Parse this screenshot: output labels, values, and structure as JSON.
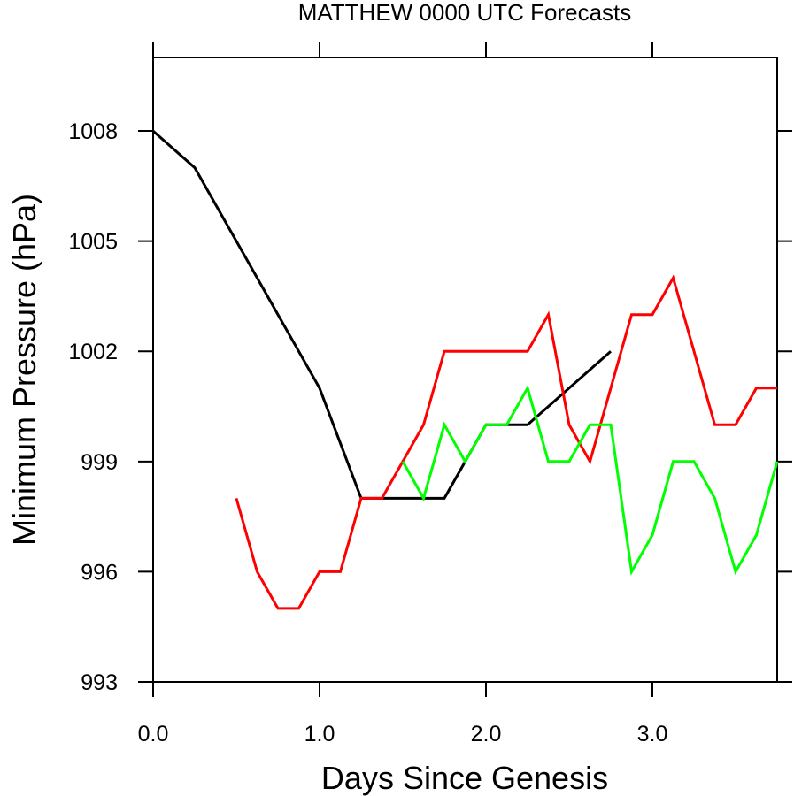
{
  "chart_data": {
    "type": "line",
    "title": "MATTHEW 0000 UTC Forecasts",
    "xlabel": "Days Since Genesis",
    "ylabel": "Minimum Pressure (hPa)",
    "xlim": [
      0,
      3.75
    ],
    "ylim": [
      993,
      1010
    ],
    "x_ticks": [
      0,
      1,
      2,
      3
    ],
    "x_tick_labels": [
      "0.0",
      "1.0",
      "2.0",
      "3.0"
    ],
    "y_ticks": [
      993,
      996,
      999,
      1002,
      1005,
      1008
    ],
    "y_tick_labels": [
      "993",
      "996",
      "999",
      "1002",
      "1005",
      "1008"
    ],
    "grid": false,
    "legend": "none",
    "series": [
      {
        "color": "#000000",
        "x": [
          0,
          0.25,
          0.5,
          0.75,
          1.0,
          1.25,
          1.5,
          1.75,
          2.0,
          2.25,
          2.5,
          2.75
        ],
        "y": [
          1008,
          1007,
          1005,
          1003,
          1001,
          998,
          998,
          998,
          1000,
          1000,
          1001,
          1002
        ]
      },
      {
        "color": "#ff0000",
        "x": [
          0.5,
          0.625,
          0.75,
          0.875,
          1.0,
          1.125,
          1.25,
          1.375,
          1.5,
          1.625,
          1.75,
          1.875,
          2.0,
          2.125,
          2.25,
          2.375,
          2.5,
          2.625,
          2.75,
          2.875,
          3.0,
          3.125,
          3.25,
          3.375,
          3.5,
          3.625,
          3.75
        ],
        "y": [
          998,
          996,
          995,
          995,
          996,
          996,
          998,
          998,
          999,
          1000,
          1002,
          1002,
          1002,
          1002,
          1002,
          1003,
          1000,
          999,
          1001,
          1003,
          1003,
          1004,
          1002,
          1000,
          1000,
          1001,
          1001
        ]
      },
      {
        "color": "#00ff00",
        "x": [
          1.5,
          1.625,
          1.75,
          1.875,
          2.0,
          2.125,
          2.25,
          2.375,
          2.5,
          2.625,
          2.75,
          2.875,
          3.0,
          3.125,
          3.25,
          3.375,
          3.5,
          3.625,
          3.75
        ],
        "y": [
          999,
          998,
          1000,
          999,
          1000,
          1000,
          1001,
          999,
          999,
          1000,
          1000,
          996,
          997,
          999,
          999,
          998,
          996,
          997,
          999
        ]
      }
    ]
  }
}
